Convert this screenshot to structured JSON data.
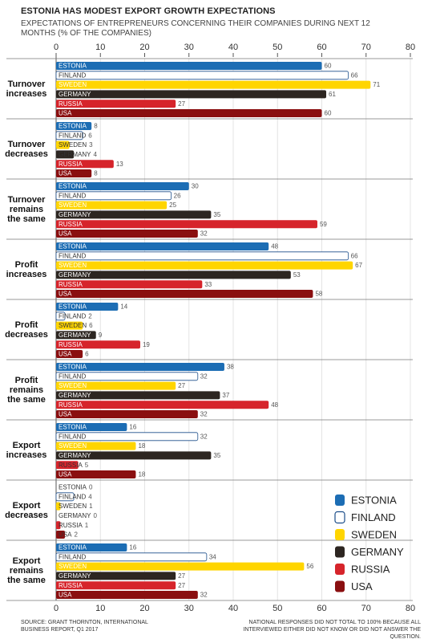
{
  "chart_data": {
    "type": "bar",
    "orientation": "horizontal",
    "title": "ESTONIA HAS MODEST EXPORT GROWTH EXPECTATIONS",
    "subtitle": "EXPECTATIONS OF ENTREPRENEURS CONCERNING THEIR COMPANIES DURING NEXT 12 MONTHS (% OF THE COMPANIES)",
    "source": "SOURCE: GRANT THORNTON, INTERNATIONAL BUSINESS REPORT, Q1 2017",
    "note": "NATIONAL RESPONSES DID NOT TOTAL TO 100% BECAUSE ALL INTERVIEWED EITHER DID NOT KNOW OR DID NOT ANSWER THE QUESTION.",
    "categories": [
      "Turnover increases",
      "Turnover decreases",
      "Turnover remains the same",
      "Profit increases",
      "Profit decreases",
      "Profit remains the same",
      "Export increases",
      "Export decreases",
      "Export remains the same"
    ],
    "series": [
      {
        "name": "ESTONIA",
        "color": "#1c6db4",
        "values": [
          60,
          8,
          30,
          48,
          14,
          38,
          16,
          0,
          16
        ]
      },
      {
        "name": "FINLAND",
        "color": "#ffffff",
        "values": [
          66,
          6,
          26,
          66,
          2,
          32,
          32,
          4,
          34
        ]
      },
      {
        "name": "SWEDEN",
        "color": "#ffd500",
        "values": [
          71,
          3,
          25,
          67,
          6,
          27,
          18,
          1,
          56
        ]
      },
      {
        "name": "GERMANY",
        "color": "#2d2621",
        "values": [
          61,
          4,
          35,
          53,
          9,
          37,
          35,
          0,
          27
        ]
      },
      {
        "name": "RUSSIA",
        "color": "#d6242b",
        "values": [
          27,
          13,
          59,
          33,
          19,
          48,
          5,
          1,
          27
        ]
      },
      {
        "name": "USA",
        "color": "#8a0f10",
        "values": [
          60,
          8,
          32,
          58,
          6,
          32,
          18,
          2,
          32
        ]
      }
    ],
    "xlim": [
      0,
      80
    ],
    "xticks": [
      0,
      10,
      20,
      30,
      40,
      50,
      60,
      70,
      80
    ],
    "grid": true,
    "legend": "bottom-right"
  }
}
